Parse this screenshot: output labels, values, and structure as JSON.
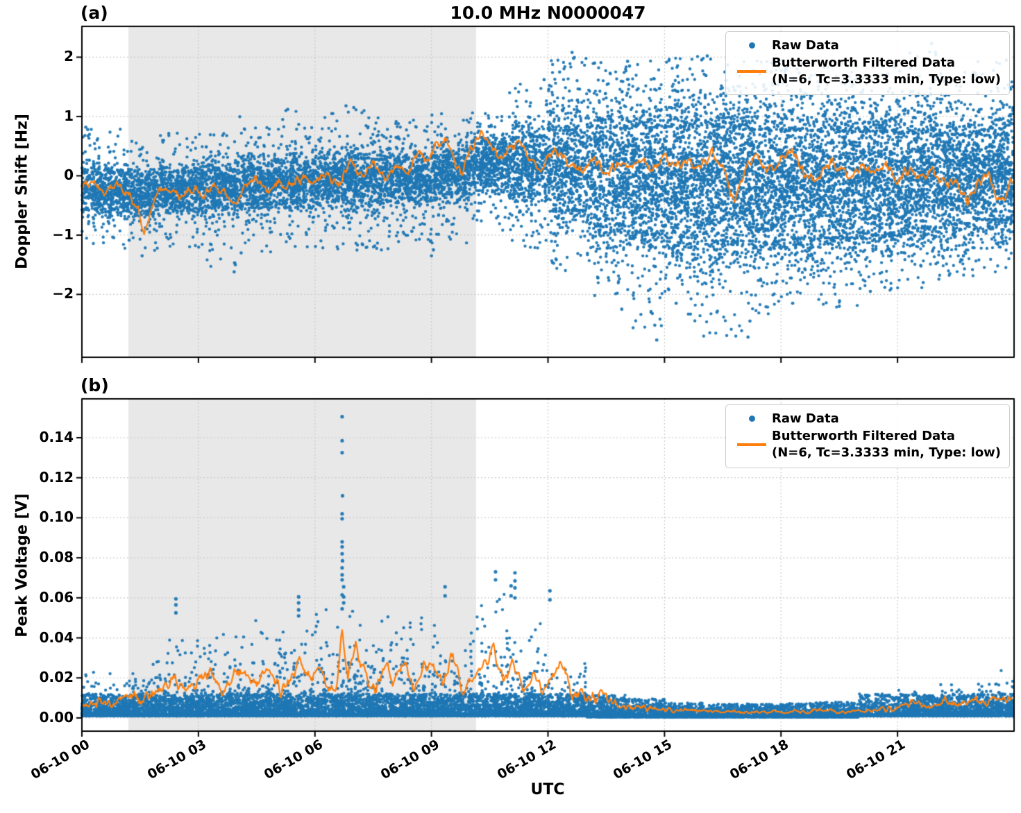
{
  "title": "10.0 MHz N0000047",
  "xlabel": "UTC",
  "panels": [
    {
      "label": "(a)",
      "ylabel": "Doppler Shift [Hz]"
    },
    {
      "label": "(b)",
      "ylabel": "Peak Voltage [V]"
    }
  ],
  "legend": {
    "raw": "Raw Data",
    "filtered_line1": "Butterworth Filtered Data",
    "filtered_line2": "(N=6, Tc=3.3333 min, Type: low)"
  },
  "colors": {
    "raw": "#1f77b4",
    "filtered": "#ff7f0e",
    "shading": "#e8e8e8",
    "grid": "#c9c9c9",
    "spine": "#000000"
  },
  "chart_data": [
    {
      "type": "scatter",
      "panel": "a",
      "title": "10.0 MHz N0000047",
      "ylabel": "Doppler Shift [Hz]",
      "series": [
        "Raw Data",
        "Butterworth Filtered Data (N=6, Tc=3.3333 min, Type: low)"
      ],
      "x_axis": "UTC hours on 06-10, range 0-24",
      "xlim_hours": [
        0,
        24
      ],
      "xtick_hours": [
        0,
        3,
        6,
        9,
        12,
        15,
        18,
        21
      ],
      "xtick_labels": [
        "06-10 00",
        "06-10 03",
        "06-10 06",
        "06-10 09",
        "06-10 12",
        "06-10 15",
        "06-10 18",
        "06-10 21"
      ],
      "ylim": [
        -3.06,
        2.52
      ],
      "yticks": [
        2,
        1,
        0,
        -1,
        -2
      ],
      "ytick_labels": [
        "2",
        "1",
        "0",
        "−1",
        "−2"
      ],
      "grid": true,
      "legend_position": "upper right",
      "shade_hours": [
        1.2,
        10.15
      ],
      "raw_bins_format": [
        "t_center_hours",
        "min",
        "max",
        "core_lo",
        "core_hi",
        "n_points"
      ],
      "raw_bins": [
        [
          0.5,
          -1.15,
          0.82,
          -0.68,
          0.18,
          520
        ],
        [
          1.5,
          -1.35,
          0.6,
          -0.72,
          0.12,
          520
        ],
        [
          2.5,
          -1.2,
          0.72,
          -0.62,
          0.18,
          520
        ],
        [
          3.5,
          -1.55,
          0.72,
          -0.65,
          0.22,
          520
        ],
        [
          4.5,
          -1.3,
          1.0,
          -0.6,
          0.3,
          520
        ],
        [
          5.5,
          -1.2,
          1.1,
          -0.55,
          0.35,
          520
        ],
        [
          6.5,
          -1.25,
          1.15,
          -0.52,
          0.42,
          520
        ],
        [
          7.5,
          -1.3,
          1.12,
          -0.55,
          0.42,
          520
        ],
        [
          8.5,
          -1.15,
          0.95,
          -0.5,
          0.38,
          520
        ],
        [
          9.5,
          -1.2,
          1.05,
          -0.42,
          0.55,
          520
        ],
        [
          10.5,
          -0.95,
          1.1,
          -0.25,
          0.68,
          540
        ],
        [
          11.5,
          -1.25,
          1.55,
          -0.5,
          0.85,
          560
        ],
        [
          12.5,
          -1.6,
          2.0,
          -0.85,
          1.05,
          620
        ],
        [
          13.5,
          -2.05,
          1.95,
          -1.15,
          1.15,
          680
        ],
        [
          14.5,
          -2.6,
          1.95,
          -1.3,
          1.18,
          720
        ],
        [
          15.5,
          -2.45,
          2.05,
          -1.42,
          1.22,
          740
        ],
        [
          16.5,
          -2.75,
          2.05,
          -1.5,
          1.22,
          740
        ],
        [
          17.5,
          -2.35,
          1.95,
          -1.5,
          1.18,
          740
        ],
        [
          18.5,
          -2.15,
          1.92,
          -1.45,
          1.15,
          730
        ],
        [
          19.5,
          -2.25,
          1.9,
          -1.42,
          1.12,
          730
        ],
        [
          20.5,
          -1.95,
          1.85,
          -1.32,
          1.1,
          720
        ],
        [
          21.5,
          -1.9,
          2.1,
          -1.22,
          1.05,
          710
        ],
        [
          22.5,
          -1.75,
          1.85,
          -1.12,
          1.0,
          700
        ],
        [
          23.5,
          -1.65,
          1.95,
          -1.02,
          0.98,
          690
        ]
      ],
      "outliers": [
        [
          12.62,
          2.08
        ],
        [
          12.66,
          1.98
        ],
        [
          13.2,
          1.9
        ],
        [
          14.05,
          1.93
        ],
        [
          14.1,
          1.85
        ],
        [
          16.1,
          2.02
        ],
        [
          21.88,
          2.23
        ],
        [
          21.98,
          2.08
        ],
        [
          11.9,
          1.62
        ],
        [
          12.3,
          1.75
        ],
        [
          23.8,
          1.95
        ],
        [
          13.9,
          -2.25
        ],
        [
          14.75,
          -2.52
        ],
        [
          14.8,
          -2.77
        ],
        [
          15.3,
          -2.15
        ],
        [
          16.35,
          -2.3
        ],
        [
          17.15,
          -2.72
        ],
        [
          17.2,
          -2.45
        ],
        [
          18.3,
          -2.15
        ],
        [
          19.5,
          -2.2
        ],
        [
          20.3,
          -1.95
        ],
        [
          3.92,
          -1.62
        ],
        [
          3.95,
          -1.5
        ],
        [
          1.55,
          -1.35
        ],
        [
          4.1,
          -1.3
        ],
        [
          9.0,
          -1.35
        ],
        [
          9.05,
          -1.25
        ],
        [
          6.8,
          1.18
        ],
        [
          7.0,
          1.15
        ],
        [
          5.3,
          1.12
        ],
        [
          0.1,
          0.82
        ],
        [
          0.15,
          0.78
        ]
      ],
      "filtered_jitter": 0.13,
      "filtered_keypoints": [
        [
          0,
          -0.18
        ],
        [
          0.3,
          -0.12
        ],
        [
          0.6,
          -0.28
        ],
        [
          0.9,
          -0.15
        ],
        [
          1.2,
          -0.28
        ],
        [
          1.45,
          -0.6
        ],
        [
          1.6,
          -1.0
        ],
        [
          1.75,
          -0.55
        ],
        [
          1.9,
          -0.3
        ],
        [
          2.2,
          -0.2
        ],
        [
          2.5,
          -0.35
        ],
        [
          2.8,
          -0.18
        ],
        [
          3.1,
          -0.3
        ],
        [
          3.4,
          -0.2
        ],
        [
          3.7,
          -0.32
        ],
        [
          3.95,
          -0.5
        ],
        [
          4.2,
          -0.15
        ],
        [
          4.5,
          -0.05
        ],
        [
          4.8,
          -0.22
        ],
        [
          5.1,
          -0.08
        ],
        [
          5.4,
          -0.18
        ],
        [
          5.7,
          0.0
        ],
        [
          6.0,
          -0.12
        ],
        [
          6.3,
          0.05
        ],
        [
          6.6,
          -0.2
        ],
        [
          6.9,
          0.3
        ],
        [
          7.2,
          0.02
        ],
        [
          7.5,
          0.25
        ],
        [
          7.8,
          -0.1
        ],
        [
          8.1,
          0.2
        ],
        [
          8.4,
          0.05
        ],
        [
          8.7,
          0.45
        ],
        [
          8.9,
          0.2
        ],
        [
          9.15,
          0.55
        ],
        [
          9.4,
          0.65
        ],
        [
          9.6,
          0.2
        ],
        [
          9.8,
          0.1
        ],
        [
          10.0,
          0.45
        ],
        [
          10.3,
          0.72
        ],
        [
          10.55,
          0.45
        ],
        [
          10.8,
          0.3
        ],
        [
          11.05,
          0.48
        ],
        [
          11.3,
          0.55
        ],
        [
          11.55,
          0.25
        ],
        [
          11.8,
          0.1
        ],
        [
          12.0,
          0.3
        ],
        [
          12.3,
          0.42
        ],
        [
          12.6,
          0.18
        ],
        [
          12.9,
          0.08
        ],
        [
          13.2,
          0.3
        ],
        [
          13.5,
          0.02
        ],
        [
          13.8,
          0.2
        ],
        [
          14.1,
          0.1
        ],
        [
          14.4,
          0.3
        ],
        [
          14.7,
          0.05
        ],
        [
          15.0,
          0.35
        ],
        [
          15.3,
          0.12
        ],
        [
          15.6,
          0.28
        ],
        [
          15.9,
          0.1
        ],
        [
          16.2,
          0.42
        ],
        [
          16.5,
          0.12
        ],
        [
          16.8,
          -0.45
        ],
        [
          17.1,
          0.15
        ],
        [
          17.4,
          0.3
        ],
        [
          17.7,
          0.08
        ],
        [
          18.0,
          0.25
        ],
        [
          18.3,
          0.42
        ],
        [
          18.6,
          0.05
        ],
        [
          18.9,
          -0.12
        ],
        [
          19.2,
          0.22
        ],
        [
          19.5,
          0.12
        ],
        [
          19.8,
          0.02
        ],
        [
          20.1,
          0.2
        ],
        [
          20.4,
          0.05
        ],
        [
          20.7,
          0.18
        ],
        [
          21.0,
          -0.08
        ],
        [
          21.3,
          0.12
        ],
        [
          21.6,
          -0.05
        ],
        [
          21.9,
          0.1
        ],
        [
          22.2,
          -0.15
        ],
        [
          22.5,
          -0.05
        ],
        [
          22.8,
          -0.42
        ],
        [
          23.1,
          -0.1
        ],
        [
          23.35,
          0.05
        ],
        [
          23.55,
          -0.35
        ],
        [
          23.75,
          -0.45
        ],
        [
          23.9,
          -0.05
        ],
        [
          24,
          -0.15
        ]
      ]
    },
    {
      "type": "scatter",
      "panel": "b",
      "ylabel": "Peak Voltage [V]",
      "series": [
        "Raw Data",
        "Butterworth Filtered Data (N=6, Tc=3.3333 min, Type: low)"
      ],
      "x_axis": "UTC hours on 06-10, range 0-24",
      "xlim_hours": [
        0,
        24
      ],
      "xtick_hours": [
        0,
        3,
        6,
        9,
        12,
        15,
        18,
        21
      ],
      "xtick_labels": [
        "06-10 00",
        "06-10 03",
        "06-10 06",
        "06-10 09",
        "06-10 12",
        "06-10 15",
        "06-10 18",
        "06-10 21"
      ],
      "ylim": [
        -0.0066,
        0.1594
      ],
      "yticks": [
        0.0,
        0.02,
        0.04,
        0.06,
        0.08,
        0.1,
        0.12,
        0.14
      ],
      "ytick_labels": [
        "0.00",
        "0.02",
        "0.04",
        "0.06",
        "0.08",
        "0.10",
        "0.12",
        "0.14"
      ],
      "grid": true,
      "legend_position": "upper right",
      "shade_hours": [
        1.2,
        10.15
      ],
      "raw_bins_format": [
        "t_center_hours",
        "floor",
        "core_hi",
        "n_points"
      ],
      "raw_bins": [
        [
          0.5,
          0.001,
          0.028,
          560
        ],
        [
          1.5,
          0.001,
          0.032,
          560
        ],
        [
          2.5,
          0.001,
          0.045,
          560
        ],
        [
          3.5,
          0.001,
          0.048,
          560
        ],
        [
          4.5,
          0.001,
          0.052,
          560
        ],
        [
          5.5,
          0.001,
          0.06,
          560
        ],
        [
          6.5,
          0.001,
          0.062,
          560
        ],
        [
          7.5,
          0.001,
          0.06,
          560
        ],
        [
          8.5,
          0.001,
          0.058,
          560
        ],
        [
          9.5,
          0.001,
          0.065,
          560
        ],
        [
          10.5,
          0.001,
          0.068,
          560
        ],
        [
          11.5,
          0.001,
          0.052,
          560
        ],
        [
          12.5,
          0.001,
          0.03,
          560
        ],
        [
          13.5,
          0.0005,
          0.012,
          500
        ],
        [
          14.5,
          0.0005,
          0.009,
          460
        ],
        [
          15.5,
          0.0005,
          0.007,
          460
        ],
        [
          16.5,
          0.0005,
          0.0065,
          460
        ],
        [
          17.5,
          0.0005,
          0.0065,
          460
        ],
        [
          18.5,
          0.0005,
          0.007,
          460
        ],
        [
          19.5,
          0.0005,
          0.0075,
          460
        ],
        [
          20.5,
          0.001,
          0.011,
          480
        ],
        [
          21.5,
          0.001,
          0.017,
          500
        ],
        [
          22.5,
          0.001,
          0.019,
          520
        ],
        [
          23.5,
          0.001,
          0.024,
          540
        ]
      ],
      "spike_points": [
        [
          6.7,
          0.1505
        ],
        [
          6.7,
          0.1385
        ],
        [
          6.7,
          0.1325
        ],
        [
          6.71,
          0.111
        ],
        [
          6.7,
          0.102
        ],
        [
          6.7,
          0.0995
        ],
        [
          6.7,
          0.088
        ],
        [
          6.7,
          0.0855
        ],
        [
          6.7,
          0.082
        ],
        [
          6.71,
          0.0785
        ],
        [
          6.7,
          0.075
        ],
        [
          6.7,
          0.0715
        ],
        [
          6.7,
          0.069
        ],
        [
          6.7,
          0.0615
        ],
        [
          6.7,
          0.0545
        ],
        [
          6.74,
          0.0655
        ],
        [
          6.74,
          0.0605
        ],
        [
          6.74,
          0.0575
        ],
        [
          5.58,
          0.0605
        ],
        [
          5.58,
          0.0575
        ],
        [
          5.58,
          0.054
        ],
        [
          5.58,
          0.051
        ],
        [
          11.15,
          0.0725
        ],
        [
          11.15,
          0.0685
        ],
        [
          11.15,
          0.065
        ],
        [
          11.15,
          0.06
        ],
        [
          11.05,
          0.066
        ],
        [
          11.05,
          0.061
        ],
        [
          2.42,
          0.0595
        ],
        [
          2.42,
          0.0565
        ],
        [
          2.42,
          0.0525
        ],
        [
          12.05,
          0.0635
        ],
        [
          12.05,
          0.059
        ],
        [
          9.35,
          0.0655
        ],
        [
          9.35,
          0.061
        ],
        [
          10.65,
          0.073
        ],
        [
          10.65,
          0.069
        ]
      ],
      "filtered_jitter": 0.005,
      "filtered_keypoints": [
        [
          0,
          0.006
        ],
        [
          0.4,
          0.009
        ],
        [
          0.8,
          0.007
        ],
        [
          1.2,
          0.012
        ],
        [
          1.6,
          0.009
        ],
        [
          2.0,
          0.014
        ],
        [
          2.4,
          0.019
        ],
        [
          2.7,
          0.013
        ],
        [
          3.0,
          0.02
        ],
        [
          3.3,
          0.022
        ],
        [
          3.6,
          0.014
        ],
        [
          3.9,
          0.02
        ],
        [
          4.2,
          0.025
        ],
        [
          4.5,
          0.017
        ],
        [
          4.8,
          0.027
        ],
        [
          5.1,
          0.013
        ],
        [
          5.4,
          0.02
        ],
        [
          5.6,
          0.029
        ],
        [
          5.85,
          0.018
        ],
        [
          6.1,
          0.024
        ],
        [
          6.35,
          0.016
        ],
        [
          6.55,
          0.012
        ],
        [
          6.7,
          0.046
        ],
        [
          6.85,
          0.02
        ],
        [
          7.05,
          0.036
        ],
        [
          7.3,
          0.02
        ],
        [
          7.55,
          0.014
        ],
        [
          7.8,
          0.028
        ],
        [
          8.05,
          0.018
        ],
        [
          8.3,
          0.03
        ],
        [
          8.55,
          0.014
        ],
        [
          8.8,
          0.024
        ],
        [
          9.05,
          0.029
        ],
        [
          9.3,
          0.018
        ],
        [
          9.55,
          0.032
        ],
        [
          9.8,
          0.012
        ],
        [
          10.05,
          0.02
        ],
        [
          10.3,
          0.026
        ],
        [
          10.6,
          0.034
        ],
        [
          10.85,
          0.018
        ],
        [
          11.1,
          0.028
        ],
        [
          11.35,
          0.014
        ],
        [
          11.6,
          0.022
        ],
        [
          11.85,
          0.012
        ],
        [
          12.1,
          0.02
        ],
        [
          12.35,
          0.028
        ],
        [
          12.6,
          0.012
        ],
        [
          12.85,
          0.014
        ],
        [
          13.1,
          0.009
        ],
        [
          13.4,
          0.012
        ],
        [
          13.7,
          0.007
        ],
        [
          14.0,
          0.006
        ],
        [
          14.5,
          0.005
        ],
        [
          15.0,
          0.004
        ],
        [
          16,
          0.0035
        ],
        [
          17,
          0.003
        ],
        [
          18,
          0.003
        ],
        [
          19,
          0.0035
        ],
        [
          20,
          0.003
        ],
        [
          20.5,
          0.004
        ],
        [
          21.0,
          0.005
        ],
        [
          21.4,
          0.007
        ],
        [
          21.8,
          0.006
        ],
        [
          22.2,
          0.008
        ],
        [
          22.6,
          0.007
        ],
        [
          23.0,
          0.009
        ],
        [
          23.3,
          0.007
        ],
        [
          23.6,
          0.011
        ],
        [
          23.8,
          0.008
        ],
        [
          24,
          0.012
        ]
      ]
    }
  ]
}
